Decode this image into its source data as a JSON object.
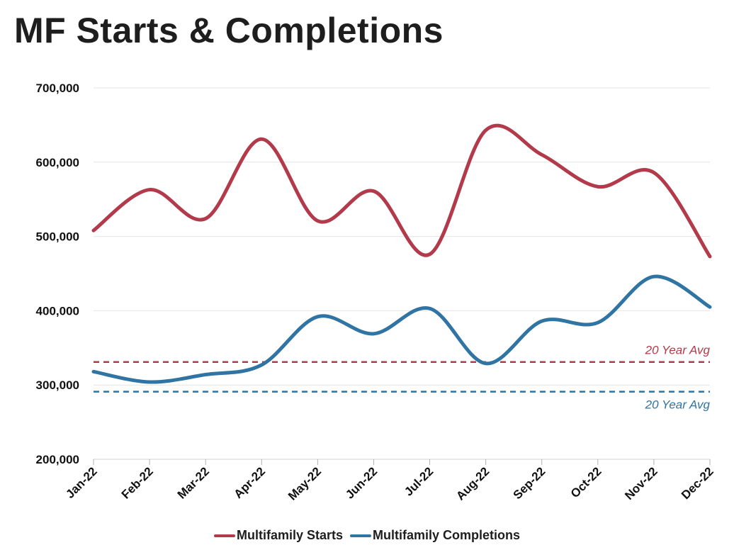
{
  "title": "MF Starts & Completions",
  "chart_data": {
    "type": "line",
    "title": "MF Starts & Completions",
    "categories": [
      "Jan-22",
      "Feb-22",
      "Mar-22",
      "Apr-22",
      "May-22",
      "Jun-22",
      "Jul-22",
      "Aug-22",
      "Sep-22",
      "Oct-22",
      "Nov-22",
      "Dec-22"
    ],
    "ylim": [
      200000,
      700000
    ],
    "yticks": [
      200000,
      300000,
      400000,
      500000,
      600000,
      700000
    ],
    "ytick_labels": [
      "200,000",
      "300,000",
      "400,000",
      "500,000",
      "600,000",
      "700,000"
    ],
    "grid": true,
    "legend_position": "bottom",
    "series": [
      {
        "name": "Multifamily Starts",
        "color": "#b33a4a",
        "values": [
          508000,
          563000,
          524000,
          631000,
          521000,
          561000,
          476000,
          643000,
          610000,
          567000,
          586000,
          473000
        ],
        "average": 331000,
        "average_label": "20 Year Avg"
      },
      {
        "name": "Multifamily Completions",
        "color": "#2f74a3",
        "values": [
          318000,
          304000,
          314000,
          327000,
          392000,
          369000,
          403000,
          329000,
          386000,
          384000,
          446000,
          405000
        ],
        "average": 291000,
        "average_label": "20 Year Avg"
      }
    ]
  }
}
